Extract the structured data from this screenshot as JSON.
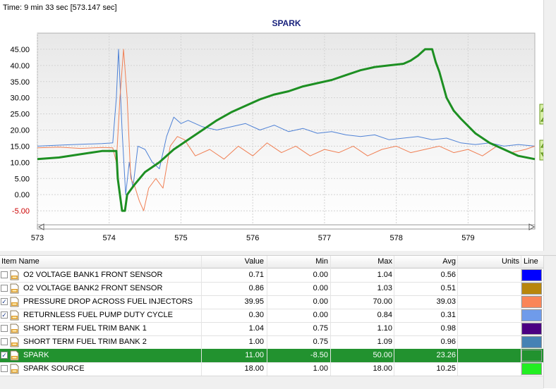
{
  "time_label": "Time: 9 min 33 sec [573.147 sec]",
  "chart_data": {
    "type": "line",
    "title": "SPARK",
    "xlim": [
      573,
      579.93
    ],
    "ylim": [
      -10,
      50
    ],
    "x_ticks": [
      "573",
      "574",
      "575",
      "576",
      "577",
      "578",
      "579"
    ],
    "y_ticks": [
      "45.00",
      "40.00",
      "35.00",
      "30.00",
      "25.00",
      "20.00",
      "15.00",
      "10.00",
      "5.00",
      "0.00",
      "-5.00"
    ],
    "grid": true,
    "series": [
      {
        "color": "#1d8f22",
        "points": [
          [
            573,
            11
          ],
          [
            573.3,
            11.5
          ],
          [
            573.6,
            12.5
          ],
          [
            573.9,
            13.5
          ],
          [
            574.1,
            13.5
          ],
          [
            574.12,
            5
          ],
          [
            574.18,
            -5
          ],
          [
            574.22,
            -5
          ],
          [
            574.25,
            0
          ],
          [
            574.35,
            3
          ],
          [
            574.5,
            7
          ],
          [
            574.7,
            10
          ],
          [
            574.9,
            14
          ],
          [
            575.1,
            17
          ],
          [
            575.3,
            20
          ],
          [
            575.5,
            23
          ],
          [
            575.7,
            25.5
          ],
          [
            575.9,
            27.5
          ],
          [
            576.1,
            29.5
          ],
          [
            576.3,
            31
          ],
          [
            576.5,
            32
          ],
          [
            576.7,
            33.5
          ],
          [
            576.9,
            34.5
          ],
          [
            577.1,
            35.5
          ],
          [
            577.3,
            37
          ],
          [
            577.5,
            38.5
          ],
          [
            577.7,
            39.5
          ],
          [
            577.9,
            40
          ],
          [
            578.1,
            40.5
          ],
          [
            578.2,
            41.5
          ],
          [
            578.3,
            43
          ],
          [
            578.4,
            45
          ],
          [
            578.5,
            45
          ],
          [
            578.55,
            41
          ],
          [
            578.6,
            38
          ],
          [
            578.7,
            30
          ],
          [
            578.8,
            26
          ],
          [
            578.9,
            23.5
          ],
          [
            579.1,
            19
          ],
          [
            579.3,
            16
          ],
          [
            579.5,
            14
          ],
          [
            579.7,
            12
          ],
          [
            579.93,
            11
          ]
        ]
      },
      {
        "color": "#f08055",
        "points": [
          [
            573,
            14.5
          ],
          [
            573.3,
            14.7
          ],
          [
            573.6,
            14.3
          ],
          [
            573.9,
            14.6
          ],
          [
            574.05,
            14.5
          ],
          [
            574.1,
            10
          ],
          [
            574.15,
            30
          ],
          [
            574.2,
            45
          ],
          [
            574.25,
            30
          ],
          [
            574.3,
            5
          ],
          [
            574.35,
            3
          ],
          [
            574.42,
            -2
          ],
          [
            574.48,
            -5
          ],
          [
            574.55,
            2
          ],
          [
            574.65,
            5
          ],
          [
            574.75,
            2
          ],
          [
            574.85,
            15
          ],
          [
            574.95,
            18
          ],
          [
            575.05,
            17
          ],
          [
            575.2,
            12
          ],
          [
            575.4,
            14
          ],
          [
            575.6,
            11
          ],
          [
            575.8,
            15
          ],
          [
            576,
            12
          ],
          [
            576.2,
            16
          ],
          [
            576.4,
            13
          ],
          [
            576.6,
            15
          ],
          [
            576.8,
            12
          ],
          [
            577,
            14
          ],
          [
            577.2,
            13
          ],
          [
            577.4,
            15
          ],
          [
            577.6,
            12
          ],
          [
            577.8,
            14
          ],
          [
            578,
            15
          ],
          [
            578.2,
            13
          ],
          [
            578.4,
            14
          ],
          [
            578.6,
            15
          ],
          [
            578.8,
            13
          ],
          [
            579,
            14
          ],
          [
            579.2,
            12
          ],
          [
            579.4,
            15
          ],
          [
            579.6,
            13
          ],
          [
            579.8,
            14
          ],
          [
            579.93,
            15
          ]
        ]
      },
      {
        "color": "#4f82d6",
        "points": [
          [
            573,
            15
          ],
          [
            573.3,
            15.3
          ],
          [
            573.6,
            15.6
          ],
          [
            573.9,
            15.8
          ],
          [
            574.05,
            16
          ],
          [
            574.1,
            30
          ],
          [
            574.13,
            45
          ],
          [
            574.18,
            20
          ],
          [
            574.23,
            0
          ],
          [
            574.28,
            10
          ],
          [
            574.33,
            2
          ],
          [
            574.4,
            15
          ],
          [
            574.5,
            14
          ],
          [
            574.6,
            10
          ],
          [
            574.7,
            8
          ],
          [
            574.8,
            18
          ],
          [
            574.9,
            24
          ],
          [
            575,
            22
          ],
          [
            575.1,
            23
          ],
          [
            575.3,
            21
          ],
          [
            575.5,
            20
          ],
          [
            575.7,
            21
          ],
          [
            575.9,
            22
          ],
          [
            576.1,
            20
          ],
          [
            576.3,
            21.5
          ],
          [
            576.5,
            19.5
          ],
          [
            576.7,
            20.5
          ],
          [
            576.9,
            19
          ],
          [
            577.1,
            19.5
          ],
          [
            577.3,
            18.5
          ],
          [
            577.5,
            18
          ],
          [
            577.7,
            18.5
          ],
          [
            577.9,
            17
          ],
          [
            578.1,
            17.5
          ],
          [
            578.3,
            18
          ],
          [
            578.5,
            17
          ],
          [
            578.7,
            17.5
          ],
          [
            578.9,
            16
          ],
          [
            579.1,
            15.5
          ],
          [
            579.3,
            16
          ],
          [
            579.5,
            15
          ],
          [
            579.7,
            15.5
          ],
          [
            579.93,
            15
          ]
        ]
      }
    ]
  },
  "columns": {
    "item_name": "Item Name",
    "value": "Value",
    "min": "Min",
    "max": "Max",
    "avg": "Avg",
    "units": "Units",
    "line": "Line"
  },
  "rows": [
    {
      "name": "O2 VOLTAGE BANK1 FRONT SENSOR",
      "value": "0.71",
      "min": "0.00",
      "max": "1.04",
      "avg": "0.56",
      "checked": false,
      "color": "#0000ff"
    },
    {
      "name": "O2 VOLTAGE BANK2 FRONT SENSOR",
      "value": "0.86",
      "min": "0.00",
      "max": "1.03",
      "avg": "0.51",
      "checked": false,
      "color": "#b8860b"
    },
    {
      "name": "PRESSURE DROP ACROSS FUEL INJECTORS",
      "value": "39.95",
      "min": "0.00",
      "max": "70.00",
      "avg": "39.03",
      "checked": true,
      "color": "#fa8558"
    },
    {
      "name": "RETURNLESS FUEL PUMP DUTY CYCLE",
      "value": "0.30",
      "min": "0.00",
      "max": "0.84",
      "avg": "0.31",
      "checked": true,
      "color": "#6f9bea"
    },
    {
      "name": "SHORT TERM FUEL TRIM BANK 1",
      "value": "1.04",
      "min": "0.75",
      "max": "1.10",
      "avg": "0.98",
      "checked": false,
      "color": "#4b0082"
    },
    {
      "name": "SHORT TERM FUEL TRIM BANK 2",
      "value": "1.00",
      "min": "0.75",
      "max": "1.09",
      "avg": "0.96",
      "checked": false,
      "color": "#4682b4"
    },
    {
      "name": "SPARK",
      "value": "11.00",
      "min": "-8.50",
      "max": "50.00",
      "avg": "23.26",
      "checked": true,
      "color": "#22922f",
      "selected": true
    },
    {
      "name": "SPARK SOURCE",
      "value": "18.00",
      "min": "1.00",
      "max": "18.00",
      "avg": "10.25",
      "checked": false,
      "color": "#22ee22"
    }
  ]
}
